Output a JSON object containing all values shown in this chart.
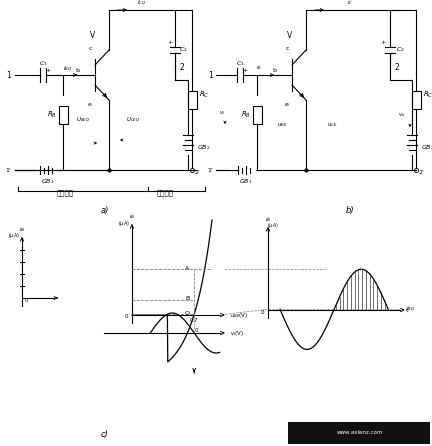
{
  "bg_color": "#ffffff",
  "line_color": "#000000",
  "gray_color": "#888888",
  "title_a": "a)",
  "title_b": "b)",
  "title_c": "c)"
}
